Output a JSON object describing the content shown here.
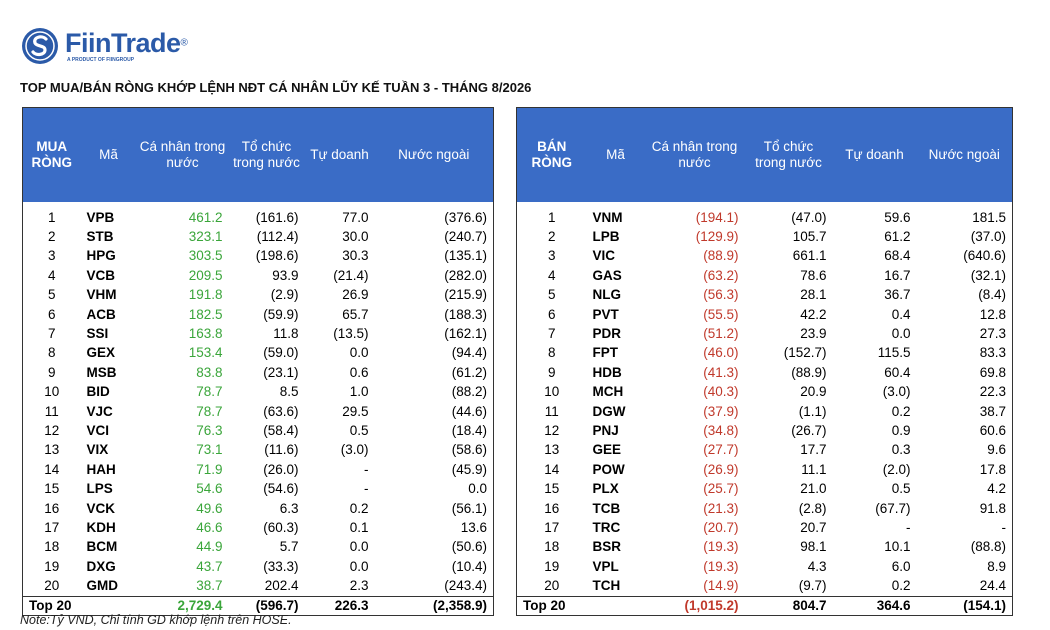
{
  "header": {
    "logo": "FiinTrade",
    "registered": "®",
    "tagline": "A PRODUCT OF FIINGROUP"
  },
  "title": "TOP MUA/BÁN RÒNG KHỚP LỆNH NĐT CÁ NHÂN LŨY KẾ TUẦN 3 - THÁNG 8/2026",
  "tables": [
    {
      "headers": [
        "MUA RÒNG",
        "Mã",
        "Cá nhân trong nước",
        "Tổ chức trong nước",
        "Tự doanh",
        "Nước ngoài"
      ],
      "rows": [
        [
          "1",
          "VPB",
          "461.2",
          "(161.6)",
          "77.0",
          "(376.6)"
        ],
        [
          "2",
          "STB",
          "323.1",
          "(112.4)",
          "30.0",
          "(240.7)"
        ],
        [
          "3",
          "HPG",
          "303.5",
          "(198.6)",
          "30.3",
          "(135.1)"
        ],
        [
          "4",
          "VCB",
          "209.5",
          "93.9",
          "(21.4)",
          "(282.0)"
        ],
        [
          "5",
          "VHM",
          "191.8",
          "(2.9)",
          "26.9",
          "(215.9)"
        ],
        [
          "6",
          "ACB",
          "182.5",
          "(59.9)",
          "65.7",
          "(188.3)"
        ],
        [
          "7",
          "SSI",
          "163.8",
          "11.8",
          "(13.5)",
          "(162.1)"
        ],
        [
          "8",
          "GEX",
          "153.4",
          "(59.0)",
          "0.0",
          "(94.4)"
        ],
        [
          "9",
          "MSB",
          "83.8",
          "(23.1)",
          "0.6",
          "(61.2)"
        ],
        [
          "10",
          "BID",
          "78.7",
          "8.5",
          "1.0",
          "(88.2)"
        ],
        [
          "11",
          "VJC",
          "78.7",
          "(63.6)",
          "29.5",
          "(44.6)"
        ],
        [
          "12",
          "VCI",
          "76.3",
          "(58.4)",
          "0.5",
          "(18.4)"
        ],
        [
          "13",
          "VIX",
          "73.1",
          "(11.6)",
          "(3.0)",
          "(58.6)"
        ],
        [
          "14",
          "HAH",
          "71.9",
          "(26.0)",
          "-",
          "(45.9)"
        ],
        [
          "15",
          "LPS",
          "54.6",
          "(54.6)",
          "-",
          "0.0"
        ],
        [
          "16",
          "VCK",
          "49.6",
          "6.3",
          "0.2",
          "(56.1)"
        ],
        [
          "17",
          "KDH",
          "46.6",
          "(60.3)",
          "0.1",
          "13.6"
        ],
        [
          "18",
          "BCM",
          "44.9",
          "5.7",
          "0.0",
          "(50.6)"
        ],
        [
          "19",
          "DXG",
          "43.7",
          "(33.3)",
          "0.0",
          "(10.4)"
        ],
        [
          "20",
          "GMD",
          "38.7",
          "202.4",
          "2.3",
          "(243.4)"
        ]
      ],
      "total": [
        "Top 20",
        "2,729.4",
        "(596.7)",
        "226.3",
        "(2,358.9)"
      ]
    },
    {
      "headers": [
        "BÁN RÒNG",
        "Mã",
        "Cá nhân trong nước",
        "Tổ chức trong nước",
        "Tự doanh",
        "Nước ngoài"
      ],
      "rows": [
        [
          "1",
          "VNM",
          "(194.1)",
          "(47.0)",
          "59.6",
          "181.5"
        ],
        [
          "2",
          "LPB",
          "(129.9)",
          "105.7",
          "61.2",
          "(37.0)"
        ],
        [
          "3",
          "VIC",
          "(88.9)",
          "661.1",
          "68.4",
          "(640.6)"
        ],
        [
          "4",
          "GAS",
          "(63.2)",
          "78.6",
          "16.7",
          "(32.1)"
        ],
        [
          "5",
          "NLG",
          "(56.3)",
          "28.1",
          "36.7",
          "(8.4)"
        ],
        [
          "6",
          "PVT",
          "(55.5)",
          "42.2",
          "0.4",
          "12.8"
        ],
        [
          "7",
          "PDR",
          "(51.2)",
          "23.9",
          "0.0",
          "27.3"
        ],
        [
          "8",
          "FPT",
          "(46.0)",
          "(152.7)",
          "115.5",
          "83.3"
        ],
        [
          "9",
          "HDB",
          "(41.3)",
          "(88.9)",
          "60.4",
          "69.8"
        ],
        [
          "10",
          "MCH",
          "(40.3)",
          "20.9",
          "(3.0)",
          "22.3"
        ],
        [
          "11",
          "DGW",
          "(37.9)",
          "(1.1)",
          "0.2",
          "38.7"
        ],
        [
          "12",
          "PNJ",
          "(34.8)",
          "(26.7)",
          "0.9",
          "60.6"
        ],
        [
          "13",
          "GEE",
          "(27.7)",
          "17.7",
          "0.3",
          "9.6"
        ],
        [
          "14",
          "POW",
          "(26.9)",
          "11.1",
          "(2.0)",
          "17.8"
        ],
        [
          "15",
          "PLX",
          "(25.7)",
          "21.0",
          "0.5",
          "4.2"
        ],
        [
          "16",
          "TCB",
          "(21.3)",
          "(2.8)",
          "(67.7)",
          "91.8"
        ],
        [
          "17",
          "TRC",
          "(20.7)",
          "20.7",
          "-",
          "-"
        ],
        [
          "18",
          "BSR",
          "(19.3)",
          "98.1",
          "10.1",
          "(88.8)"
        ],
        [
          "19",
          "VPL",
          "(19.3)",
          "4.3",
          "6.0",
          "8.9"
        ],
        [
          "20",
          "TCH",
          "(14.9)",
          "(9.7)",
          "0.2",
          "24.4"
        ]
      ],
      "total": [
        "Top 20",
        "(1,015.2)",
        "804.7",
        "364.6",
        "(154.1)"
      ]
    }
  ],
  "note": "Note:Tỷ VND,  Chỉ tính GD khớp lệnh trên HOSE."
}
